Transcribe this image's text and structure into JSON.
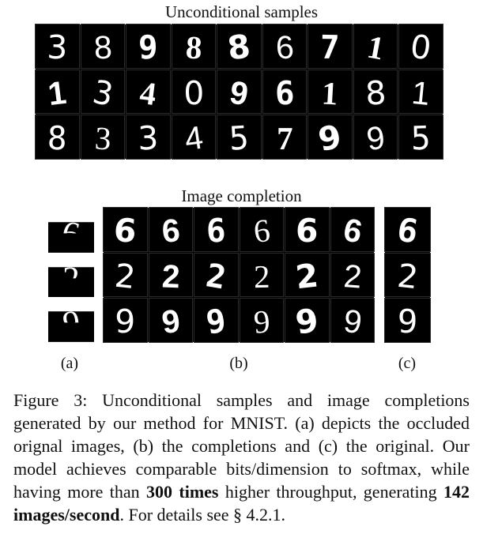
{
  "figure": {
    "unconditional_title": "Unconditional samples",
    "completion_title": "Image completion",
    "unconditional_rows": [
      [
        "3",
        "8",
        "9",
        "8",
        "8",
        "6",
        "7",
        "1",
        "0"
      ],
      [
        "1",
        "3",
        "4",
        "0",
        "9",
        "6",
        "1",
        "8",
        "1"
      ],
      [
        "8",
        "3",
        "3",
        "4",
        "5",
        "7",
        "9",
        "9",
        "5"
      ]
    ],
    "completion_rows": [
      {
        "digit": "6",
        "occluded": "6",
        "completions": [
          "6",
          "6",
          "6",
          "6",
          "6",
          "6"
        ],
        "original": "6"
      },
      {
        "digit": "2",
        "occluded": "2",
        "completions": [
          "2",
          "2",
          "2",
          "2",
          "2",
          "2"
        ],
        "original": "2"
      },
      {
        "digit": "9",
        "occluded": "9",
        "completions": [
          "9",
          "9",
          "9",
          "9",
          "9",
          "9"
        ],
        "original": "9"
      }
    ],
    "sub_labels": {
      "a": "(a)",
      "b": "(b)",
      "c": "(c)"
    }
  },
  "caption": {
    "part1": "Figure 3: Unconditional samples and image completions generated by our method for MNIST. (a) depicts the occluded orignal images, (b) the completions and (c) the original. Our model achieves comparable bits/dimension to softmax, while having more than ",
    "bold1": "300 times",
    "part2": " higher throughput, generating ",
    "bold2": "142 images/second",
    "part3": ". For details see § 4.2.1."
  }
}
